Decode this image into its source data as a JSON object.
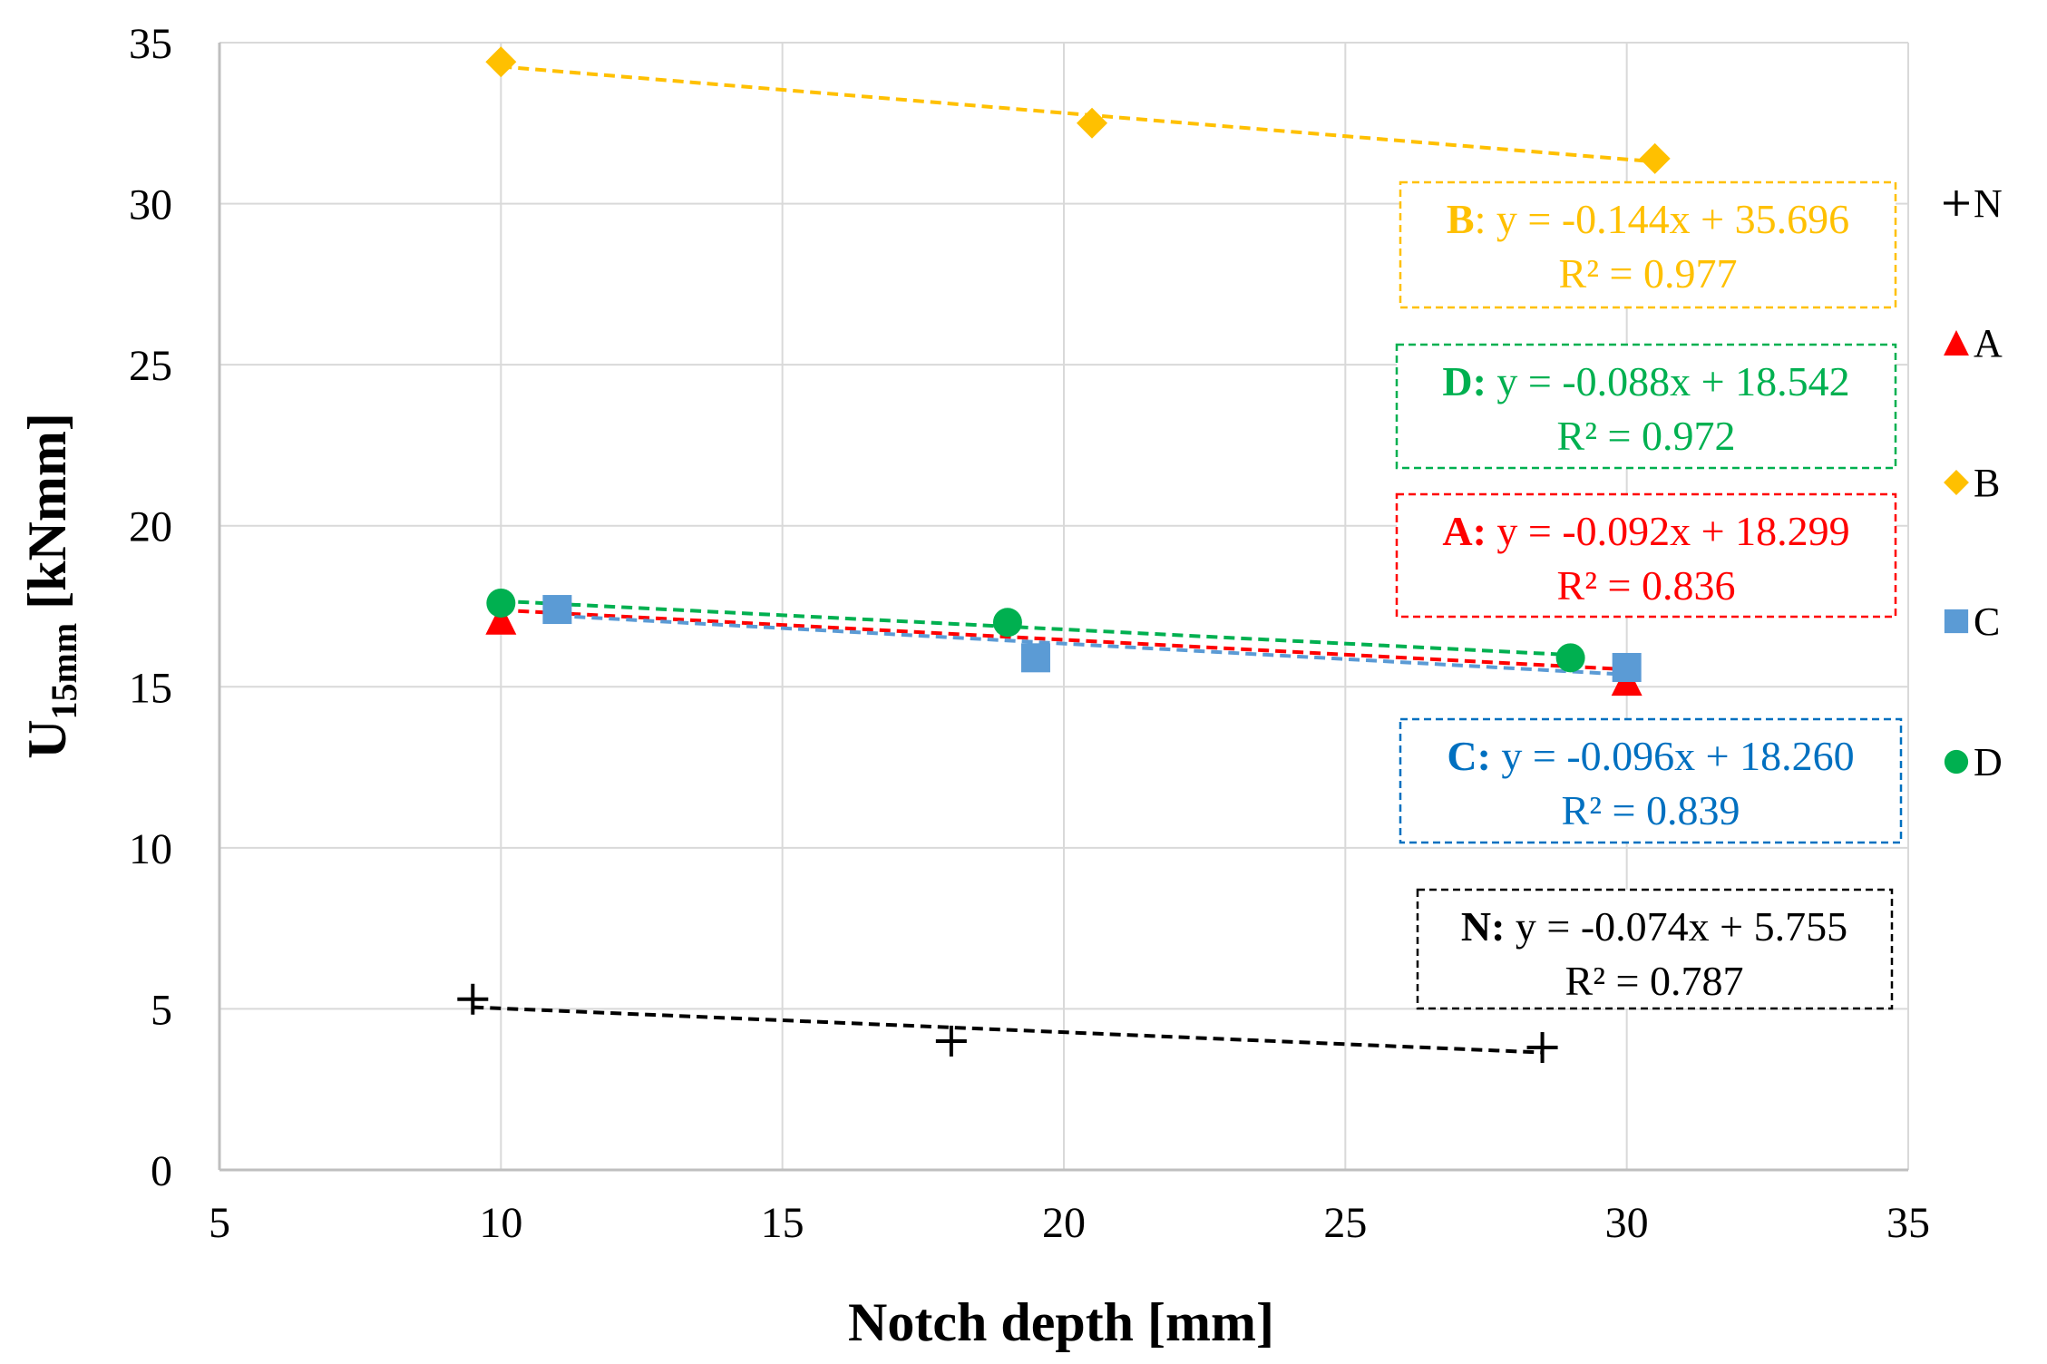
{
  "chart_data": {
    "type": "scatter",
    "title": "",
    "xlabel": "Notch depth [mm]",
    "ylabel_main": "U",
    "ylabel_sub": "15mm",
    "ylabel_unit": " [kNmm]",
    "xlim": [
      5,
      35
    ],
    "ylim": [
      0,
      35
    ],
    "xticks": [
      5,
      10,
      15,
      20,
      25,
      30,
      35
    ],
    "yticks": [
      0,
      5,
      10,
      15,
      20,
      25,
      30,
      35
    ],
    "grid": true,
    "legend_position": "right",
    "series": [
      {
        "name": "N",
        "color": "#000000",
        "marker": "plus",
        "points": [
          [
            9.5,
            5.3
          ],
          [
            18.0,
            4.0
          ],
          [
            28.5,
            3.8
          ]
        ],
        "trend": {
          "slope": -0.074,
          "intercept": 5.755,
          "x_start": 9.5,
          "x_end": 28.5
        },
        "equation": {
          "label": "N:",
          "text": " y = -0.074x + 5.755",
          "r2": "R² = 0.787",
          "box_color": "#000000"
        }
      },
      {
        "name": "A",
        "color": "#ff0000",
        "marker": "triangle",
        "points": [
          [
            10.0,
            17.1
          ],
          [
            30.0,
            15.2
          ]
        ],
        "trend": {
          "slope": -0.092,
          "intercept": 18.299,
          "x_start": 10.0,
          "x_end": 30.0
        },
        "equation": {
          "label": "A:",
          "text": " y = -0.092x + 18.299",
          "r2": "R² = 0.836",
          "box_color": "#ff0000"
        }
      },
      {
        "name": "B",
        "color": "#ffc000",
        "marker": "diamond",
        "points": [
          [
            10.0,
            34.4
          ],
          [
            20.5,
            32.5
          ],
          [
            30.5,
            31.4
          ]
        ],
        "trend": {
          "slope": -0.144,
          "intercept": 35.696,
          "x_start": 10.0,
          "x_end": 30.5
        },
        "equation": {
          "label": "B",
          "text": ": y = -0.144x + 35.696",
          "r2": "R² = 0.977",
          "box_color": "#ffc000"
        }
      },
      {
        "name": "C",
        "color": "#5b9bd5",
        "marker": "square",
        "points": [
          [
            11.0,
            17.4
          ],
          [
            19.5,
            15.9
          ],
          [
            30.0,
            15.6
          ]
        ],
        "trend": {
          "slope": -0.096,
          "intercept": 18.26,
          "x_start": 11.0,
          "x_end": 30.0
        },
        "equation": {
          "label": "C:",
          "text": " y = -0.096x + 18.260",
          "r2": "R² = 0.839",
          "box_color": "#0070c0"
        }
      },
      {
        "name": "D",
        "color": "#00b050",
        "marker": "circle",
        "points": [
          [
            10.0,
            17.6
          ],
          [
            19.0,
            17.0
          ],
          [
            29.0,
            15.9
          ]
        ],
        "trend": {
          "slope": -0.088,
          "intercept": 18.542,
          "x_start": 10.0,
          "x_end": 29.0
        },
        "equation": {
          "label": "D:",
          "text": " y = -0.088x + 18.542",
          "r2": "R² = 0.972",
          "box_color": "#00b050"
        }
      }
    ]
  }
}
